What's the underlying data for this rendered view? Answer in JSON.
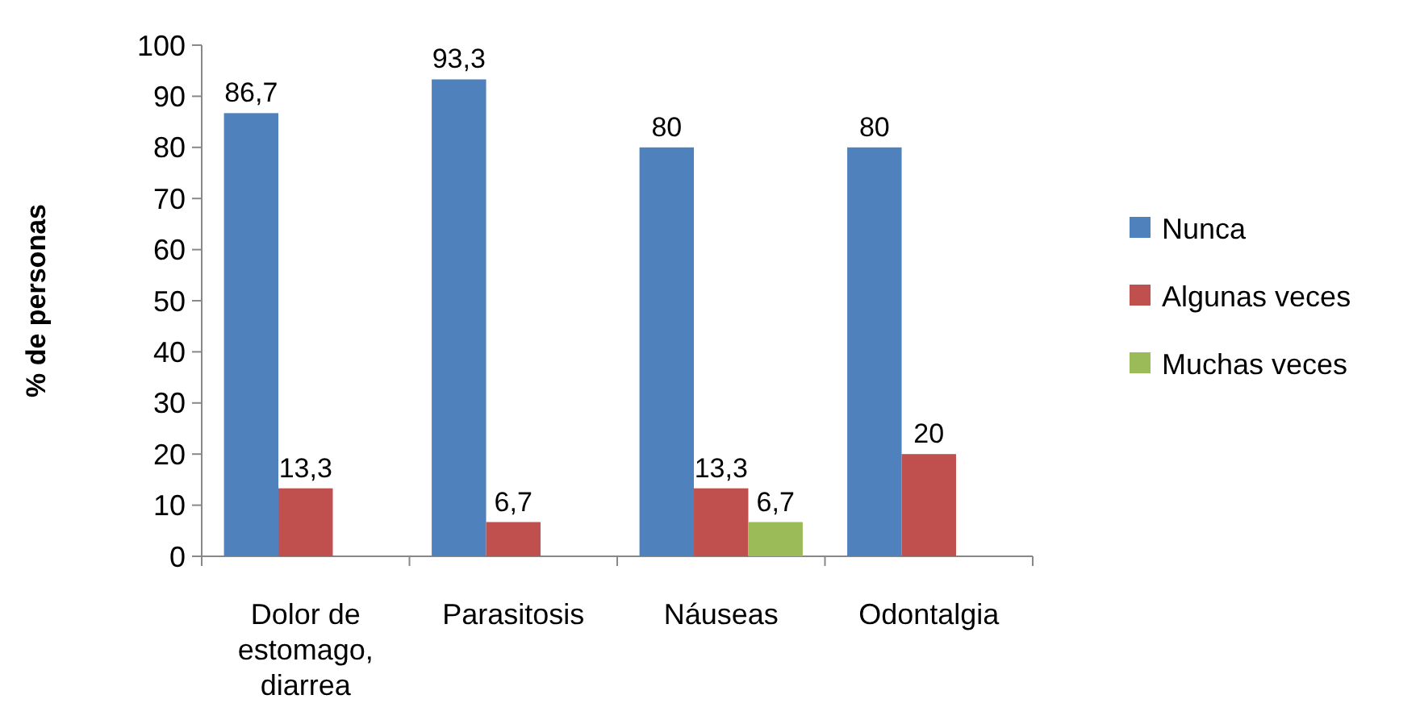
{
  "chart_data": {
    "type": "bar",
    "ylabel": "% de personas",
    "categories": [
      "Dolor de estomago, diarrea",
      "Parasitosis",
      "Náuseas",
      "Odontalgia"
    ],
    "series": [
      {
        "name": "Nunca",
        "color": "#4f81bd",
        "values": [
          86.7,
          93.3,
          80,
          80
        ],
        "value_labels": [
          "86,7",
          "93,3",
          "80",
          "80"
        ]
      },
      {
        "name": "Algunas veces",
        "color": "#c0504d",
        "values": [
          13.3,
          6.7,
          13.3,
          20
        ],
        "value_labels": [
          "13,3",
          "6,7",
          "13,3",
          "20"
        ]
      },
      {
        "name": "Muchas veces",
        "color": "#9bbb59",
        "values": [
          null,
          null,
          6.7,
          null
        ],
        "value_labels": [
          null,
          null,
          "6,7",
          null
        ]
      }
    ],
    "ylim": [
      0,
      100
    ],
    "yticks": [
      0,
      10,
      20,
      30,
      40,
      50,
      60,
      70,
      80,
      90,
      100
    ],
    "legend": "right",
    "grid": false
  }
}
